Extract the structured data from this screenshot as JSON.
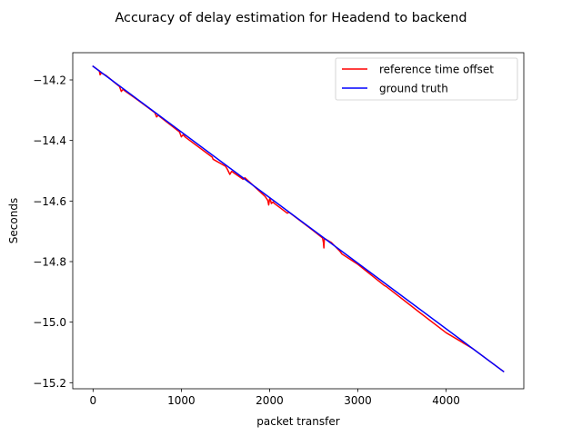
{
  "chart_data": {
    "type": "line",
    "title": "Accuracy of delay estimation for Headend to backend",
    "xlabel": "packet transfer",
    "ylabel": "Seconds",
    "xlim": [
      -230,
      4880
    ],
    "ylim": [
      -15.22,
      -14.11
    ],
    "xticks": [
      {
        "value": 0,
        "label": "0"
      },
      {
        "value": 1000,
        "label": "1000"
      },
      {
        "value": 2000,
        "label": "2000"
      },
      {
        "value": 3000,
        "label": "3000"
      },
      {
        "value": 4000,
        "label": "4000"
      }
    ],
    "yticks": [
      {
        "value": -14.2,
        "label": "−14.2"
      },
      {
        "value": -14.4,
        "label": "−14.4"
      },
      {
        "value": -14.6,
        "label": "−14.6"
      },
      {
        "value": -14.8,
        "label": "−14.8"
      },
      {
        "value": -15.0,
        "label": "−15.0"
      },
      {
        "value": -15.2,
        "label": "−15.2"
      }
    ],
    "grid": false,
    "legend_position": "top-right",
    "series": [
      {
        "name": "reference time offset",
        "color": "#ff0000",
        "x": [
          0,
          70,
          80,
          90,
          150,
          300,
          320,
          340,
          360,
          500,
          700,
          720,
          740,
          760,
          980,
          1000,
          1020,
          1050,
          1350,
          1360,
          1500,
          1520,
          1550,
          1570,
          1600,
          1700,
          1720,
          1950,
          1980,
          1990,
          2000,
          2010,
          2020,
          2040,
          2050,
          2100,
          2200,
          2220,
          2500,
          2600,
          2610,
          2615,
          2620,
          2630,
          2700,
          2800,
          2820,
          3000,
          3300,
          3320,
          3700,
          4000,
          4300,
          4650
        ],
        "y": [
          -14.155,
          -14.17,
          -14.183,
          -14.176,
          -14.186,
          -14.222,
          -14.238,
          -14.231,
          -14.236,
          -14.265,
          -14.308,
          -14.322,
          -14.316,
          -14.322,
          -14.372,
          -14.388,
          -14.381,
          -14.39,
          -14.455,
          -14.462,
          -14.485,
          -14.494,
          -14.512,
          -14.502,
          -14.508,
          -14.528,
          -14.523,
          -14.585,
          -14.598,
          -14.613,
          -14.593,
          -14.597,
          -14.608,
          -14.603,
          -14.607,
          -14.618,
          -14.64,
          -14.637,
          -14.699,
          -14.722,
          -14.737,
          -14.755,
          -14.727,
          -14.725,
          -14.737,
          -14.767,
          -14.775,
          -14.809,
          -14.879,
          -14.882,
          -14.968,
          -15.035,
          -15.087,
          -15.163
        ]
      },
      {
        "name": "ground truth",
        "color": "#0000ff",
        "x": [
          0,
          4650
        ],
        "y": [
          -14.155,
          -15.163
        ]
      }
    ]
  }
}
